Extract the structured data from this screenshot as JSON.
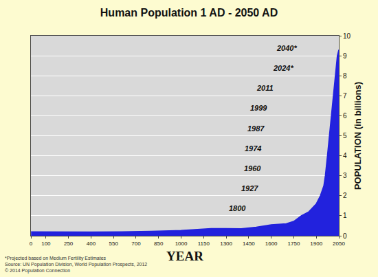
{
  "chart_data": {
    "type": "area",
    "title": "Human Population 1 AD - 2050 AD",
    "x_label": "YEAR",
    "y_label": "POPULATION (in billions)",
    "x": [
      1,
      200,
      400,
      600,
      800,
      1000,
      1100,
      1200,
      1300,
      1400,
      1500,
      1600,
      1700,
      1750,
      1800,
      1850,
      1900,
      1927,
      1950,
      1960,
      1974,
      1987,
      1999,
      2011,
      2024,
      2040,
      2050
    ],
    "values": [
      0.2,
      0.19,
      0.19,
      0.2,
      0.22,
      0.27,
      0.31,
      0.36,
      0.36,
      0.35,
      0.43,
      0.55,
      0.6,
      0.72,
      1,
      1.2,
      1.6,
      2,
      2.5,
      3,
      4,
      5,
      6,
      7,
      8,
      9,
      9.3
    ],
    "color": "#2222dd",
    "xlim": [
      0,
      2050
    ],
    "xticks": [
      0,
      100,
      250,
      400,
      550,
      700,
      850,
      1000,
      1150,
      1300,
      1450,
      1600,
      1750,
      1900,
      2050
    ],
    "ylim": [
      0,
      10
    ],
    "yticks": [
      0,
      1,
      2,
      3,
      4,
      5,
      6,
      7,
      8,
      9,
      10
    ],
    "grid": true,
    "annotations": [
      {
        "text": "1800",
        "y": 1
      },
      {
        "text": "1927",
        "y": 2
      },
      {
        "text": "1960",
        "y": 3
      },
      {
        "text": "1974",
        "y": 4
      },
      {
        "text": "1987",
        "y": 5
      },
      {
        "text": "1999",
        "y": 6
      },
      {
        "text": "2011",
        "y": 7
      },
      {
        "text": "2024*",
        "y": 8
      },
      {
        "text": "2040*",
        "y": 9
      }
    ],
    "notes": [
      "*Projected based on Medium Fertility Estimates",
      "Source: UN Population Division, World Population Prospects, 2012",
      "© 2014 Population Connection"
    ]
  }
}
